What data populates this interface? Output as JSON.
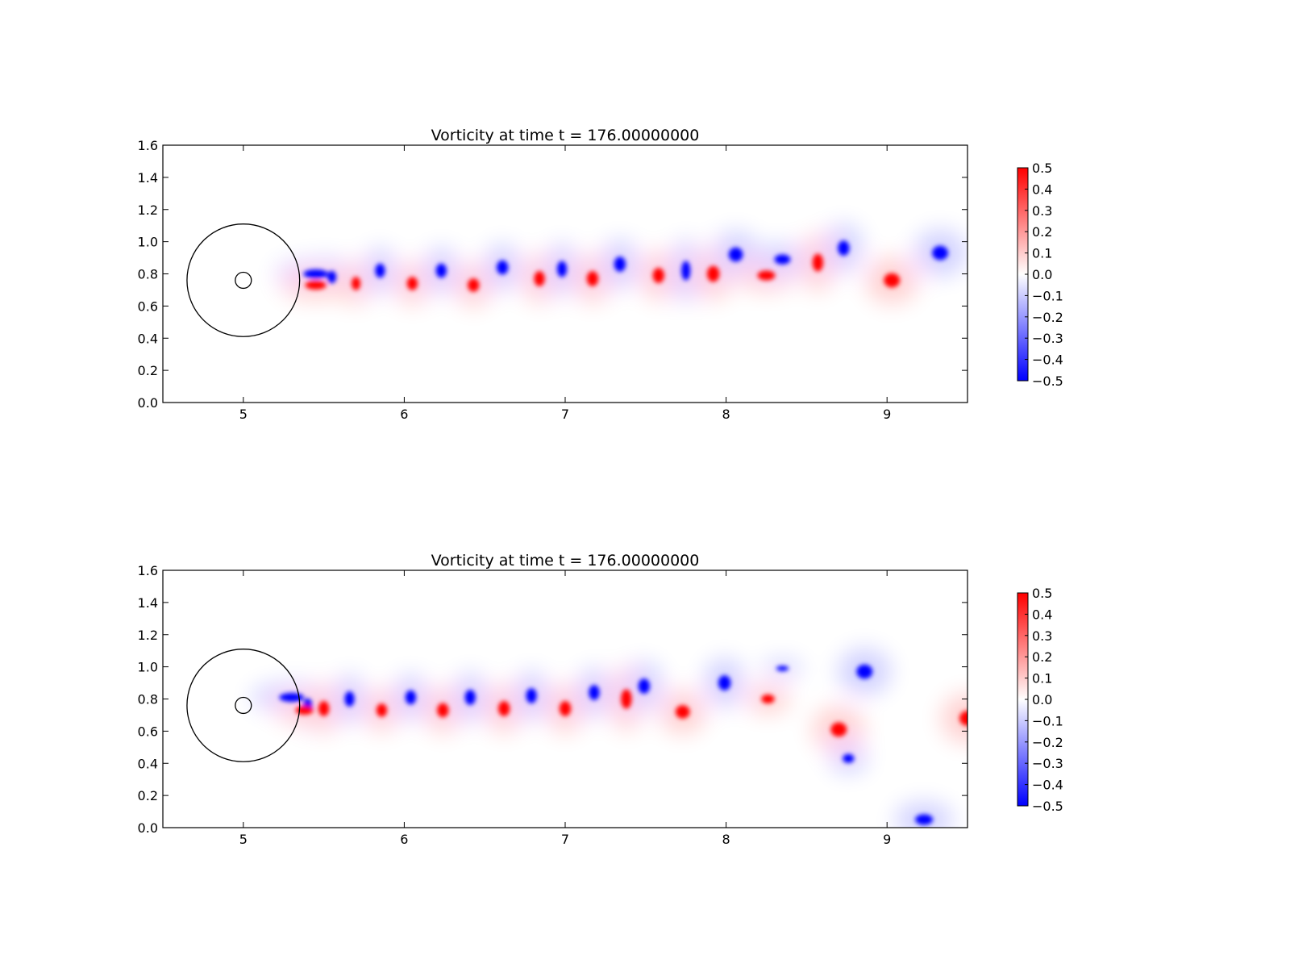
{
  "colors": {
    "positive": "#ff0000",
    "zero": "#ffffff",
    "negative": "#0000ff",
    "axes": "#000000"
  },
  "colormap": "bwr",
  "chart_data": [
    {
      "type": "heatmap",
      "title": "Vorticity at time t =   176.00000000",
      "xlabel": "",
      "ylabel": "",
      "xlim": [
        4.5,
        9.5
      ],
      "ylim": [
        0.0,
        1.6
      ],
      "xticks": [
        "5",
        "6",
        "7",
        "8",
        "9"
      ],
      "yticks": [
        "0.0",
        "0.2",
        "0.4",
        "0.6",
        "0.8",
        "1.0",
        "1.2",
        "1.4",
        "1.6"
      ],
      "grid": false,
      "colorbar": {
        "range": [
          -0.5,
          0.5
        ],
        "ticks": [
          "0.5",
          "0.4",
          "0.3",
          "0.2",
          "0.1",
          "0.0",
          "−0.1",
          "−0.2",
          "−0.3",
          "−0.4",
          "−0.5"
        ]
      },
      "overlay_circles": [
        {
          "cx": 5.0,
          "cy": 0.76,
          "r": 0.35
        },
        {
          "cx": 5.0,
          "cy": 0.76,
          "r": 0.05
        }
      ],
      "vortices": [
        {
          "x": 5.45,
          "y": 0.8,
          "w": 0.14,
          "h": 0.05,
          "v": -0.5
        },
        {
          "x": 5.55,
          "y": 0.78,
          "w": 0.05,
          "h": 0.07,
          "v": -0.5
        },
        {
          "x": 5.45,
          "y": 0.73,
          "w": 0.12,
          "h": 0.05,
          "v": 0.5
        },
        {
          "x": 5.7,
          "y": 0.74,
          "w": 0.05,
          "h": 0.075,
          "v": 0.5
        },
        {
          "x": 5.85,
          "y": 0.82,
          "w": 0.055,
          "h": 0.08,
          "v": -0.5
        },
        {
          "x": 6.05,
          "y": 0.74,
          "w": 0.06,
          "h": 0.075,
          "v": 0.5
        },
        {
          "x": 6.23,
          "y": 0.82,
          "w": 0.06,
          "h": 0.08,
          "v": -0.5
        },
        {
          "x": 6.43,
          "y": 0.73,
          "w": 0.065,
          "h": 0.075,
          "v": 0.5
        },
        {
          "x": 6.61,
          "y": 0.84,
          "w": 0.065,
          "h": 0.08,
          "v": -0.5
        },
        {
          "x": 6.84,
          "y": 0.77,
          "w": 0.06,
          "h": 0.085,
          "v": 0.5
        },
        {
          "x": 6.98,
          "y": 0.83,
          "w": 0.055,
          "h": 0.09,
          "v": -0.5
        },
        {
          "x": 7.17,
          "y": 0.77,
          "w": 0.065,
          "h": 0.085,
          "v": 0.5
        },
        {
          "x": 7.34,
          "y": 0.86,
          "w": 0.065,
          "h": 0.085,
          "v": -0.5
        },
        {
          "x": 7.58,
          "y": 0.79,
          "w": 0.065,
          "h": 0.085,
          "v": 0.5
        },
        {
          "x": 7.75,
          "y": 0.82,
          "w": 0.05,
          "h": 0.11,
          "v": -0.5
        },
        {
          "x": 7.92,
          "y": 0.8,
          "w": 0.07,
          "h": 0.09,
          "v": 0.5
        },
        {
          "x": 8.06,
          "y": 0.92,
          "w": 0.08,
          "h": 0.08,
          "v": -0.5
        },
        {
          "x": 8.25,
          "y": 0.79,
          "w": 0.1,
          "h": 0.055,
          "v": 0.5
        },
        {
          "x": 8.35,
          "y": 0.89,
          "w": 0.09,
          "h": 0.055,
          "v": -0.5
        },
        {
          "x": 8.57,
          "y": 0.87,
          "w": 0.06,
          "h": 0.1,
          "v": 0.5
        },
        {
          "x": 8.73,
          "y": 0.96,
          "w": 0.065,
          "h": 0.085,
          "v": -0.5
        },
        {
          "x": 9.03,
          "y": 0.76,
          "w": 0.09,
          "h": 0.08,
          "v": 0.5
        },
        {
          "x": 9.33,
          "y": 0.93,
          "w": 0.09,
          "h": 0.08,
          "v": -0.5
        }
      ]
    },
    {
      "type": "heatmap",
      "title": "Vorticity at time t =   176.00000000",
      "xlabel": "",
      "ylabel": "",
      "xlim": [
        4.5,
        9.5
      ],
      "ylim": [
        0.0,
        1.6
      ],
      "xticks": [
        "5",
        "6",
        "7",
        "8",
        "9"
      ],
      "yticks": [
        "0.0",
        "0.2",
        "0.4",
        "0.6",
        "0.8",
        "1.0",
        "1.2",
        "1.4",
        "1.6"
      ],
      "grid": false,
      "colorbar": {
        "range": [
          -0.5,
          0.5
        ],
        "ticks": [
          "0.5",
          "0.4",
          "0.3",
          "0.2",
          "0.1",
          "0.0",
          "−0.1",
          "−0.2",
          "−0.3",
          "−0.4",
          "−0.5"
        ]
      },
      "overlay_circles": [
        {
          "cx": 5.0,
          "cy": 0.76,
          "r": 0.35
        },
        {
          "cx": 5.0,
          "cy": 0.76,
          "r": 0.05
        }
      ],
      "vortices": [
        {
          "x": 5.3,
          "y": 0.81,
          "w": 0.14,
          "h": 0.05,
          "v": -0.5
        },
        {
          "x": 5.4,
          "y": 0.76,
          "w": 0.05,
          "h": 0.08,
          "v": -0.5
        },
        {
          "x": 5.38,
          "y": 0.73,
          "w": 0.1,
          "h": 0.05,
          "v": 0.5
        },
        {
          "x": 5.5,
          "y": 0.74,
          "w": 0.06,
          "h": 0.085,
          "v": 0.5
        },
        {
          "x": 5.66,
          "y": 0.8,
          "w": 0.055,
          "h": 0.085,
          "v": -0.5
        },
        {
          "x": 5.86,
          "y": 0.73,
          "w": 0.06,
          "h": 0.075,
          "v": 0.5
        },
        {
          "x": 6.04,
          "y": 0.81,
          "w": 0.06,
          "h": 0.08,
          "v": -0.5
        },
        {
          "x": 6.24,
          "y": 0.73,
          "w": 0.065,
          "h": 0.08,
          "v": 0.5
        },
        {
          "x": 6.41,
          "y": 0.81,
          "w": 0.06,
          "h": 0.085,
          "v": -0.5
        },
        {
          "x": 6.62,
          "y": 0.74,
          "w": 0.065,
          "h": 0.085,
          "v": 0.5
        },
        {
          "x": 6.79,
          "y": 0.82,
          "w": 0.06,
          "h": 0.085,
          "v": -0.5
        },
        {
          "x": 7.0,
          "y": 0.74,
          "w": 0.065,
          "h": 0.085,
          "v": 0.5
        },
        {
          "x": 7.18,
          "y": 0.84,
          "w": 0.06,
          "h": 0.085,
          "v": -0.5
        },
        {
          "x": 7.38,
          "y": 0.8,
          "w": 0.06,
          "h": 0.11,
          "v": 0.5
        },
        {
          "x": 7.49,
          "y": 0.88,
          "w": 0.065,
          "h": 0.085,
          "v": -0.5
        },
        {
          "x": 7.73,
          "y": 0.72,
          "w": 0.08,
          "h": 0.075,
          "v": 0.5
        },
        {
          "x": 7.99,
          "y": 0.9,
          "w": 0.07,
          "h": 0.085,
          "v": -0.5
        },
        {
          "x": 8.26,
          "y": 0.8,
          "w": 0.075,
          "h": 0.05,
          "v": 0.5
        },
        {
          "x": 8.35,
          "y": 0.99,
          "w": 0.07,
          "h": 0.03,
          "v": -0.5
        },
        {
          "x": 8.7,
          "y": 0.61,
          "w": 0.09,
          "h": 0.08,
          "v": 0.5
        },
        {
          "x": 8.76,
          "y": 0.43,
          "w": 0.065,
          "h": 0.05,
          "v": -0.5
        },
        {
          "x": 8.86,
          "y": 0.97,
          "w": 0.09,
          "h": 0.08,
          "v": -0.5
        },
        {
          "x": 9.23,
          "y": 0.05,
          "w": 0.1,
          "h": 0.06,
          "v": -0.5
        },
        {
          "x": 9.5,
          "y": 0.68,
          "w": 0.09,
          "h": 0.085,
          "v": 0.5
        }
      ]
    }
  ]
}
